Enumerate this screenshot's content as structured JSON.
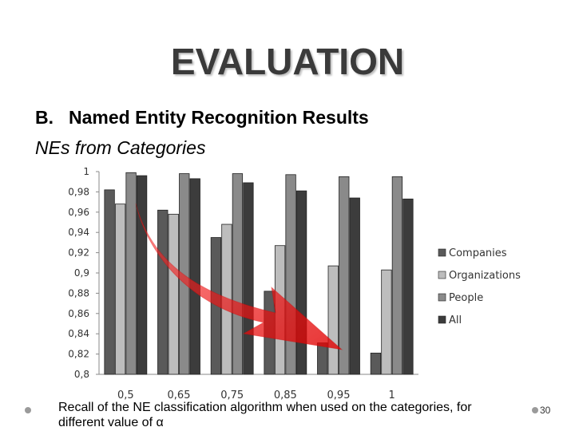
{
  "slide": {
    "title": "EVALUATION",
    "heading_number": "B.",
    "heading": "Named Entity Recognition Results",
    "subheading": "NEs from Categories",
    "caption": "Recall of the NE classification algorithm when used on the categories, for different value of α",
    "page_number": "30"
  },
  "chart_data": {
    "type": "bar",
    "title": "",
    "xlabel": "",
    "ylabel": "",
    "categories": [
      "0,5",
      "0,65",
      "0,75",
      "0,85",
      "0,95",
      "1"
    ],
    "series": [
      {
        "name": "Companies",
        "color": "#5a5a5a",
        "values": [
          0.982,
          0.962,
          0.935,
          0.882,
          0.831,
          0.821
        ]
      },
      {
        "name": "Organizations",
        "color": "#bdbdbd",
        "values": [
          0.968,
          0.958,
          0.948,
          0.927,
          0.907,
          0.903
        ]
      },
      {
        "name": "People",
        "color": "#8a8a8a",
        "values": [
          0.999,
          0.998,
          0.998,
          0.997,
          0.995,
          0.995
        ]
      },
      {
        "name": "All",
        "color": "#3c3c3c",
        "values": [
          0.996,
          0.993,
          0.989,
          0.981,
          0.974,
          0.973
        ]
      }
    ],
    "ylim": [
      0.8,
      1.0
    ],
    "yticks": [
      "0,8",
      "0,82",
      "0,84",
      "0,86",
      "0,88",
      "0,9",
      "0,92",
      "0,94",
      "0,96",
      "0,98",
      "1"
    ],
    "grid": false,
    "legend_position": "right",
    "annotation": "red-arrow-decreasing-trend"
  }
}
